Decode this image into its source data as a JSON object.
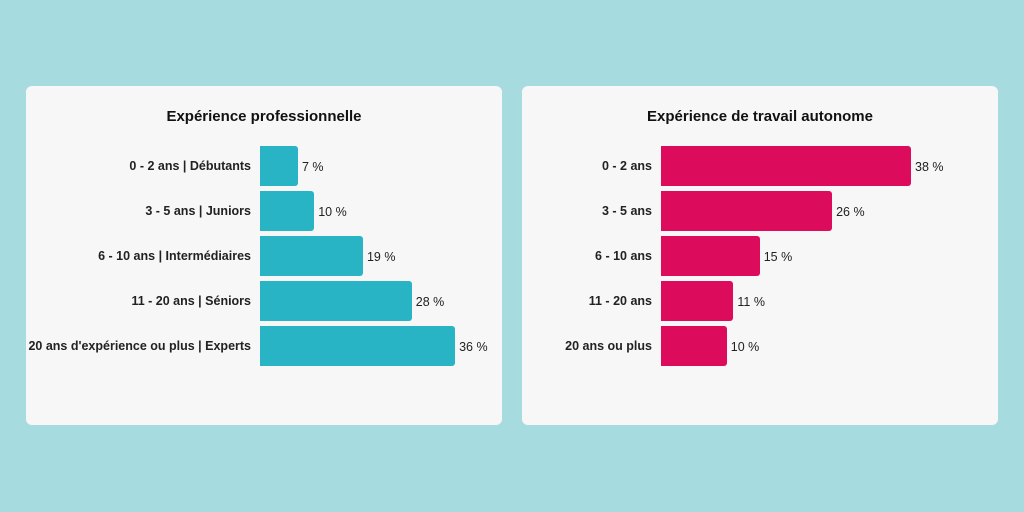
{
  "chart_data": [
    {
      "type": "bar",
      "orientation": "horizontal",
      "title": "Expérience professionnelle",
      "categories": [
        "0 - 2 ans | Débutants",
        "3 - 5 ans | Juniors",
        "6 - 10 ans | Intermédiaires",
        "11 - 20 ans | Séniors",
        "20 ans d'expérience ou plus | Experts"
      ],
      "values": [
        7,
        10,
        19,
        28,
        36
      ],
      "value_labels": [
        "7 %",
        "10 %",
        "19 %",
        "28 %",
        "36 %"
      ],
      "unit": "%",
      "color": "#29b4c5",
      "grid": false
    },
    {
      "type": "bar",
      "orientation": "horizontal",
      "title": "Expérience de travail autonome",
      "categories": [
        "0 - 2 ans",
        "3 - 5 ans",
        "6 - 10 ans",
        "11 - 20 ans",
        "20 ans ou plus"
      ],
      "values": [
        38,
        26,
        15,
        11,
        10
      ],
      "value_labels": [
        "38 %",
        "26 %",
        "15 %",
        "11 %",
        "10 %"
      ],
      "unit": "%",
      "color": "#dc0b5b",
      "grid": false
    }
  ]
}
